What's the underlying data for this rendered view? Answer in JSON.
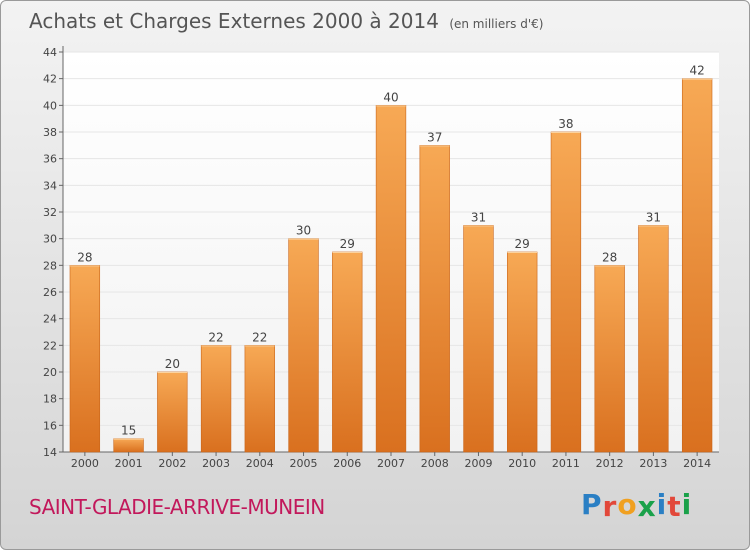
{
  "title": "Achats et Charges Externes 2000 à 2014",
  "subtitle": "(en milliers d'€)",
  "commune": "SAINT-GLADIE-ARRIVE-MUNEIN",
  "logo": {
    "text": "Proxiti",
    "letters": [
      "P",
      "r",
      "o",
      "x",
      "i",
      "t",
      "i"
    ],
    "colors": [
      "#2a7fc4",
      "#e2483a",
      "#f0a020",
      "#1aa14a",
      "#2a7fc4",
      "#e2483a",
      "#1aa14a"
    ]
  },
  "colors": {
    "bar_light": "#f7a955",
    "bar_dark": "#d9701f",
    "bar_edge": "#c9651a",
    "axis": "#666666",
    "grid": "#e6e6e6"
  },
  "chart_data": {
    "type": "bar",
    "title": "Achats et Charges Externes 2000 à 2014",
    "subtitle": "(en milliers d'€)",
    "xlabel": "",
    "ylabel": "",
    "ylim": [
      14,
      44
    ],
    "yticks": [
      14,
      16,
      18,
      20,
      22,
      24,
      26,
      28,
      30,
      32,
      34,
      36,
      38,
      40,
      42,
      44
    ],
    "grid": true,
    "categories": [
      "2000",
      "2001",
      "2002",
      "2003",
      "2004",
      "2005",
      "2006",
      "2007",
      "2008",
      "2009",
      "2010",
      "2011",
      "2012",
      "2013",
      "2014"
    ],
    "values": [
      28,
      15,
      20,
      22,
      22,
      30,
      29,
      40,
      37,
      31,
      29,
      38,
      28,
      31,
      42
    ]
  }
}
